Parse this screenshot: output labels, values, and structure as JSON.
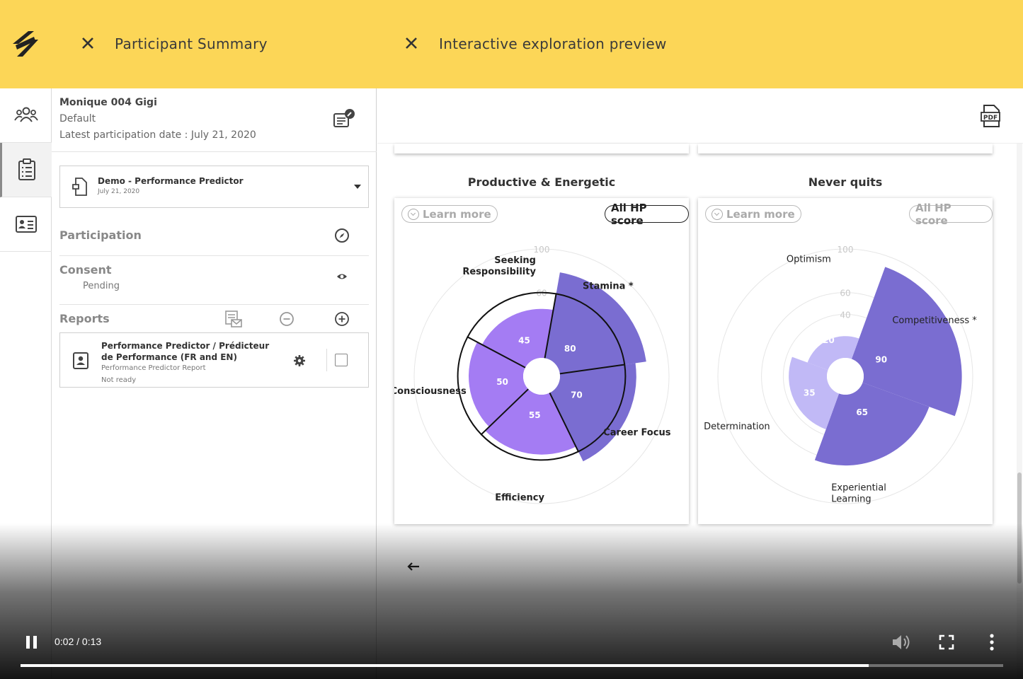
{
  "topbar": {
    "left_title": "Participant Summary",
    "right_title": "Interactive exploration preview",
    "bg_color": "#fcd657"
  },
  "rail": {
    "items": [
      {
        "icon": "group-icon",
        "active": false
      },
      {
        "icon": "clipboard-icon",
        "active": true
      },
      {
        "icon": "id-card-icon",
        "active": false
      }
    ]
  },
  "participant": {
    "name": "Monique 004 Gigi",
    "group": "Default",
    "latest_date": "Latest participation date : July 21, 2020"
  },
  "assessment": {
    "title": "Demo - Performance Predictor",
    "date": "July 21, 2020"
  },
  "sections": {
    "participation": "Participation",
    "consent": "Consent",
    "consent_status": "Pending",
    "reports": "Reports"
  },
  "report": {
    "title": "Performance Predictor / Prédicteur de Performance (FR and EN)",
    "type": "Performance Predictor Report",
    "status": "Not ready"
  },
  "preview": {
    "learn_more": "Learn more",
    "all_hp_score": "All HP score"
  },
  "chart_data": [
    {
      "type": "polar-area",
      "title": "Productive & Energetic",
      "r_ticks": [
        40,
        60,
        100
      ],
      "categories": [
        "Stamina *",
        "Career Focus",
        "Efficiency",
        "Health Consciousness",
        "Seeking Responsibility"
      ],
      "values": [
        80,
        70,
        55,
        50,
        45
      ],
      "category_lines": [
        [
          "Stamina *"
        ],
        [
          "Career Focus"
        ],
        [
          "Efficiency"
        ],
        [
          "Health Consciousness"
        ],
        [
          "Seeking",
          "Responsibility"
        ]
      ],
      "colors": [
        "#7a6dd1",
        "#7a6dd1",
        "#a47cf3",
        "#a47cf3",
        "#a47cf3"
      ]
    },
    {
      "type": "polar-area",
      "title": "Never quits",
      "r_ticks": [
        40,
        60,
        100
      ],
      "categories": [
        "Competitiveness *",
        "Experiential Learning",
        "Determination",
        "Optimism"
      ],
      "values": [
        90,
        65,
        35,
        20
      ],
      "category_lines": [
        [
          "Competitiveness *"
        ],
        [
          "Experiential",
          "Learning"
        ],
        [
          "Determination"
        ],
        [
          "Optimism"
        ]
      ],
      "colors": [
        "#7a6dd1",
        "#7a6dd1",
        "#c1b9f6",
        "#c1b9f6"
      ]
    }
  ],
  "video": {
    "time": "0:02 / 0:13",
    "progress": 0.863
  }
}
